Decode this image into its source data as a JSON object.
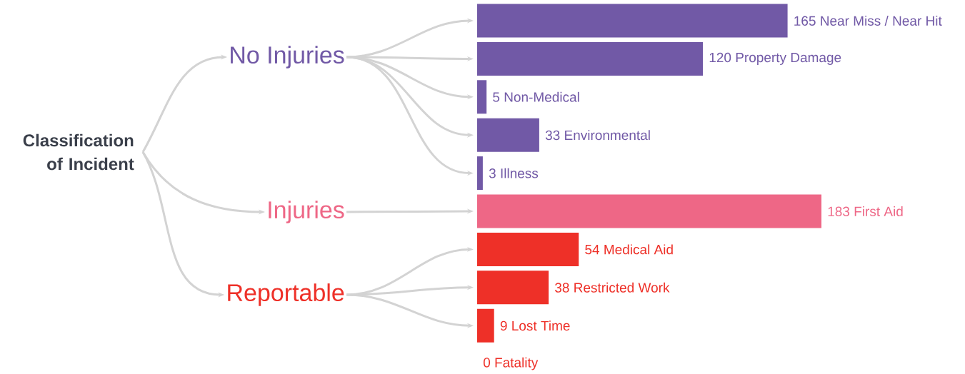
{
  "chart_data": {
    "type": "bar",
    "orientation": "horizontal",
    "data_labels": true,
    "annotations": [
      "Classification of Incident",
      "No Injuries",
      "Injuries",
      "Reportable"
    ],
    "categories": [
      "Near Miss / Near Hit",
      "Property Damage",
      "Non-Medical",
      "Environmental",
      "Illness",
      "First Aid",
      "Medical Aid",
      "Restricted Work",
      "Lost Time",
      "Fatality"
    ],
    "values": [
      165,
      120,
      5,
      33,
      3,
      183,
      54,
      38,
      9,
      0
    ],
    "colors": [
      "#7159a6",
      "#7159a6",
      "#7159a6",
      "#7159a6",
      "#7159a6",
      "#ee6786",
      "#ee3028",
      "#ee3028",
      "#ee3028",
      "#ee3028"
    ]
  }
}
